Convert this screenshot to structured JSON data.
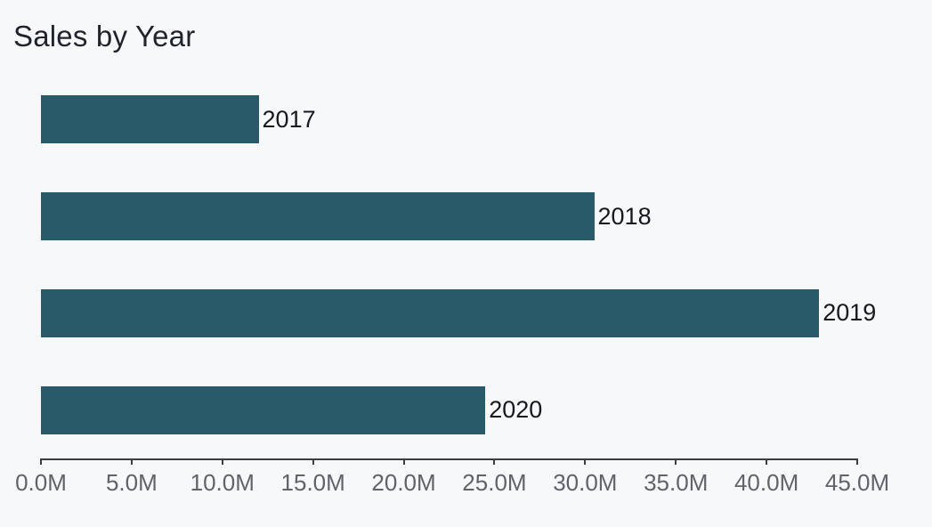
{
  "title": "Sales by Year",
  "colors": {
    "background": "#f7f8fa",
    "bar_fill": "#295a69",
    "title_text": "#1f232b",
    "bar_label_text": "#16191f",
    "axis_line": "#3d3d3f",
    "tick_label_text": "#5f646b"
  },
  "chart_data": {
    "type": "bar",
    "orientation": "horizontal",
    "title": "Sales by Year",
    "categories": [
      "2017",
      "2018",
      "2019",
      "2020"
    ],
    "values": [
      12.0,
      30.5,
      42.9,
      24.5
    ],
    "value_unit": "M",
    "xlabel": "",
    "ylabel": "",
    "xlim": [
      0,
      45
    ],
    "x_ticks": [
      "0.0M",
      "5.0M",
      "10.0M",
      "15.0M",
      "20.0M",
      "25.0M",
      "30.0M",
      "35.0M",
      "40.0M",
      "45.0M"
    ],
    "grid": false,
    "legend": "none",
    "category_label_position": "end-of-bar"
  }
}
